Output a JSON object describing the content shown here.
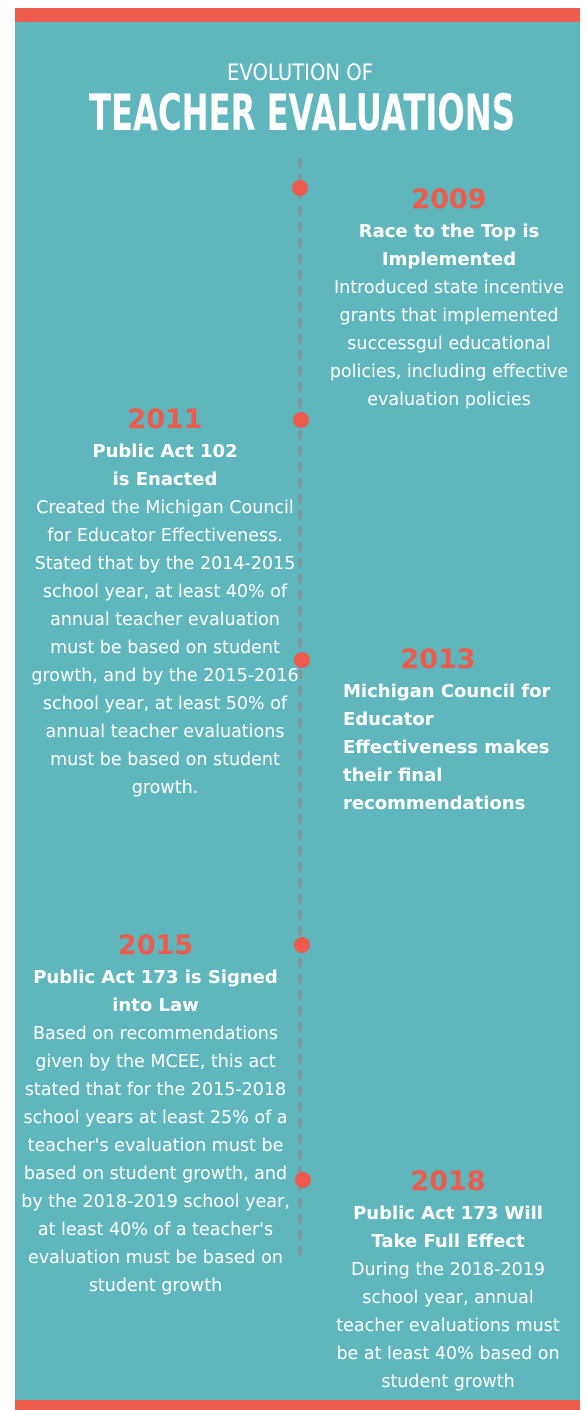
{
  "title": {
    "line1": "EVOLUTION OF",
    "line2": "TEACHER EVALUATIONS"
  },
  "events": [
    {
      "year": "2009",
      "heading": "Race  to the Top is Implemented",
      "description": "Introduced state incentive grants that implemented successgul educational policies, including effective evaluation policies"
    },
    {
      "year": "2011",
      "heading": "Public Act 102 is Enacted",
      "description": "Created the Michigan Council for Educator Effectiveness. Stated that by the 2014-2015 school year, at least 40% of annual teacher evaluation must be based on student growth, and by the 2015-2016 school year, at least 50% of annual teacher evaluations must be based on student growth."
    },
    {
      "year": "2013",
      "heading": "Michigan Council for Educator Effectiveness makes their final recommendations"
    },
    {
      "year": "2015",
      "heading": "Public Act 173 is Signed into Law",
      "description": "Based on recommendations given by the MCEE, this act stated that for the 2015-2018 school years at least 25% of a teacher's evaluation must be based on student growth, and by the 2018-2019 school year, at least 40% of a teacher's evaluation must be based on student growth"
    },
    {
      "year": "2018",
      "heading": "Public Act 173 Will Take Full Effect",
      "description": "During the 2018-2019 school year, annual teacher evaluations must be at least 40% based on student growth"
    }
  ]
}
